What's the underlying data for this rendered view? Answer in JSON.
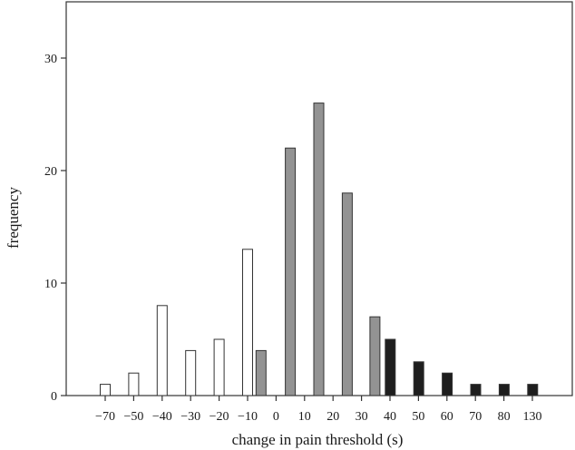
{
  "chart_data": {
    "type": "bar",
    "title": "",
    "xlabel": "change in pain threshold (s)",
    "ylabel": "frequency",
    "ylim": [
      0,
      35
    ],
    "yticks": [
      0,
      10,
      20,
      30
    ],
    "grid": false,
    "legend": "none",
    "xtick_labels": [
      "−70",
      "−50",
      "−40",
      "−30",
      "−20",
      "−10",
      "0",
      "10",
      "20",
      "30",
      "40",
      "50",
      "60",
      "70",
      "80",
      "130"
    ],
    "bars": [
      {
        "x": -70,
        "value": 1,
        "group": "decrease"
      },
      {
        "x": -50,
        "value": 2,
        "group": "decrease"
      },
      {
        "x": -40,
        "value": 8,
        "group": "decrease"
      },
      {
        "x": -30,
        "value": 4,
        "group": "decrease"
      },
      {
        "x": -20,
        "value": 5,
        "group": "decrease"
      },
      {
        "x": -10,
        "value": 13,
        "group": "decrease"
      },
      {
        "x": -5,
        "value": 4,
        "group": "moderate"
      },
      {
        "x": 5,
        "value": 22,
        "group": "moderate"
      },
      {
        "x": 15,
        "value": 26,
        "group": "moderate"
      },
      {
        "x": 25,
        "value": 18,
        "group": "moderate"
      },
      {
        "x": 35,
        "value": 7,
        "group": "moderate"
      },
      {
        "x": 40,
        "value": 5,
        "group": "large"
      },
      {
        "x": 50,
        "value": 3,
        "group": "large"
      },
      {
        "x": 60,
        "value": 2,
        "group": "large"
      },
      {
        "x": 70,
        "value": 1,
        "group": "large"
      },
      {
        "x": 80,
        "value": 1,
        "group": "large"
      },
      {
        "x": 130,
        "value": 1,
        "group": "large"
      }
    ],
    "colors": {
      "decrease": "#ffffff",
      "moderate": "#939393",
      "large": "#1e1e1e",
      "stroke": "#333333"
    }
  }
}
